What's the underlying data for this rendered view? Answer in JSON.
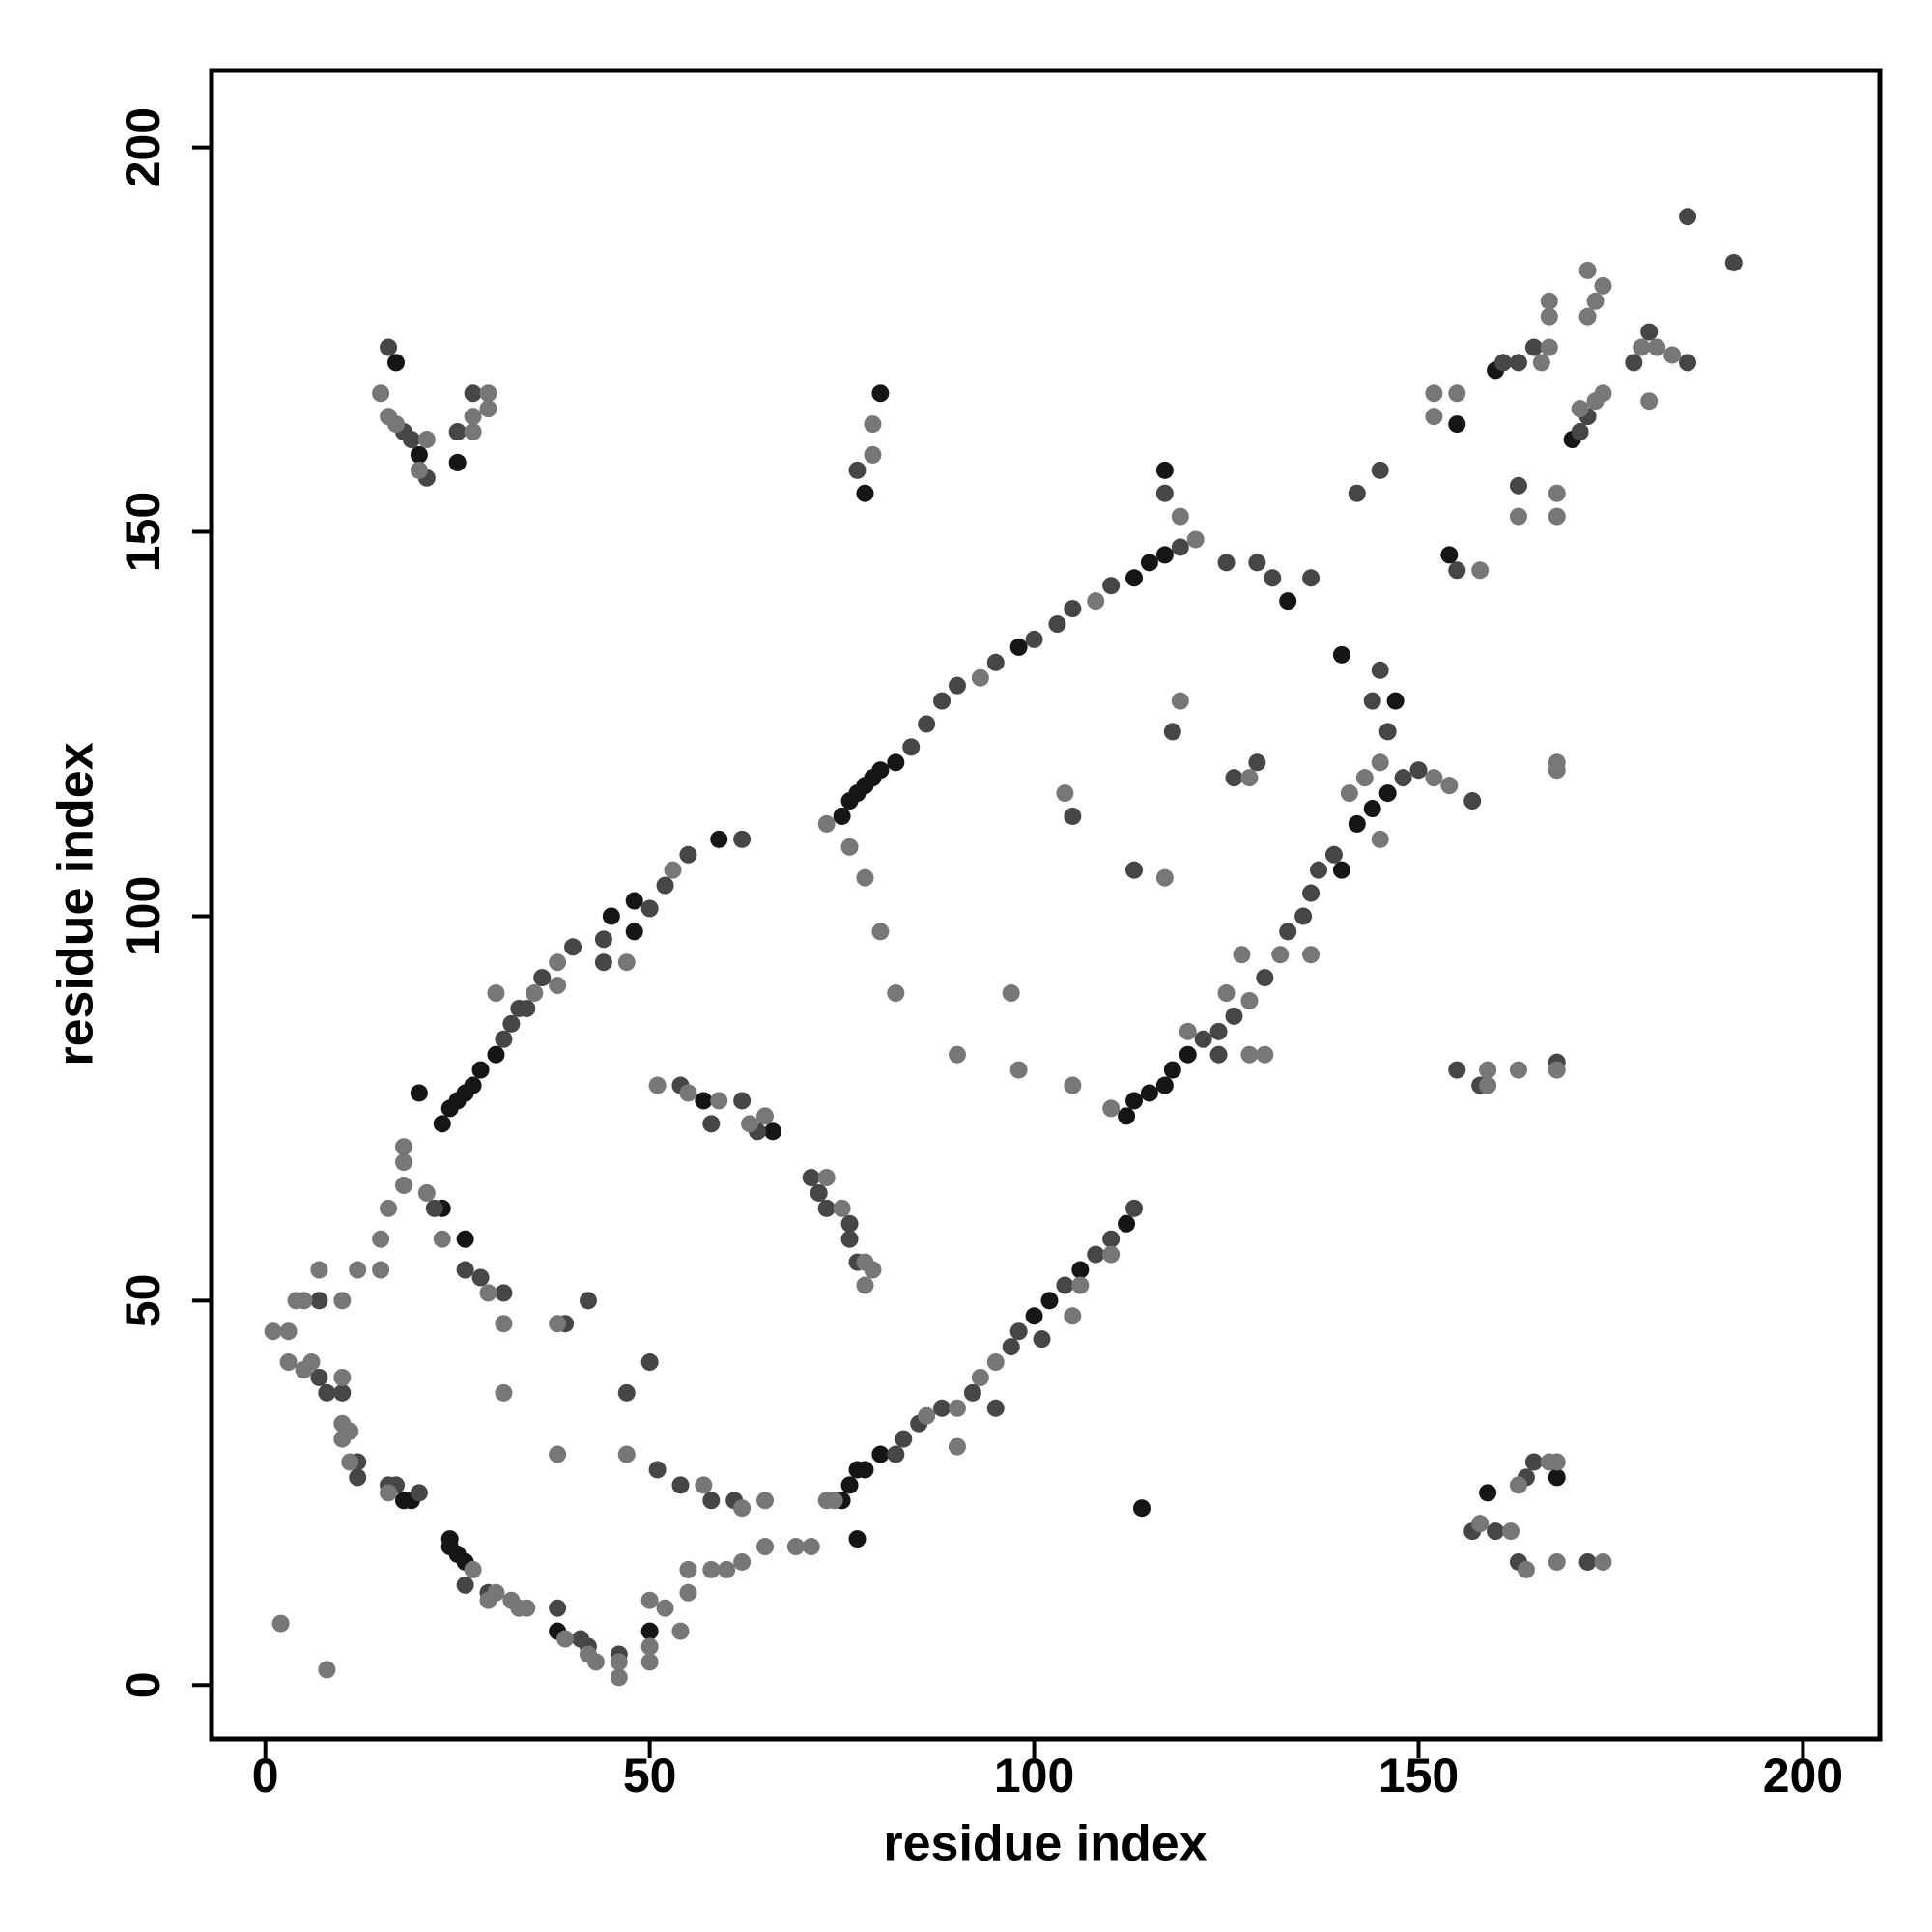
{
  "chart_data": {
    "type": "scatter",
    "x_label": "residue index",
    "y_label": "residue index",
    "xlim": [
      -7,
      210
    ],
    "ylim": [
      -7,
      210
    ],
    "xticks": [
      0,
      50,
      100,
      150,
      200
    ],
    "yticks": [
      0,
      50,
      100,
      150,
      200
    ],
    "series": [
      {
        "color": "#151515",
        "x": [
          20,
          23,
          24,
          25,
          26,
          27,
          28,
          30,
          24,
          24,
          25,
          26,
          26,
          23,
          45,
          48,
          48,
          59,
          57,
          66,
          75,
          76,
          77,
          78,
          80,
          77,
          100,
          102,
          106,
          112,
          75,
          76,
          77,
          78,
          79,
          80,
          82,
          113,
          115,
          117,
          117,
          133,
          98,
          112,
          113,
          115,
          117,
          118,
          120,
          142,
          144,
          146,
          140,
          147,
          140,
          154,
          155,
          160,
          170,
          159,
          168,
          114,
          25,
          80,
          78,
          17,
          20,
          18,
          19,
          38,
          50
        ],
        "values": [
          77,
          73,
          75,
          76,
          77,
          78,
          80,
          82,
          19,
          18,
          17,
          16,
          58,
          62,
          100,
          102,
          98,
          110,
          76,
          72,
          24,
          26,
          28,
          28,
          30,
          19,
          48,
          50,
          54,
          60,
          113,
          115,
          116,
          117,
          118,
          119,
          120,
          144,
          146,
          147,
          158,
          141,
          135,
          74,
          76,
          77,
          78,
          80,
          82,
          112,
          114,
          116,
          134,
          128,
          106,
          147,
          164,
          171,
          162,
          25,
          27,
          23,
          159,
          168,
          155,
          172,
          160,
          24,
          24,
          7,
          7
        ]
      },
      {
        "color": "#464646",
        "x": [
          7,
          7,
          8,
          10,
          12,
          12,
          16,
          17,
          20,
          26,
          29,
          38,
          41,
          42,
          46,
          22,
          26,
          28,
          31,
          32,
          34,
          36,
          40,
          44,
          50,
          52,
          55,
          62,
          54,
          58,
          62,
          64,
          71,
          72,
          73,
          76,
          76,
          77,
          58,
          61,
          47,
          50,
          51,
          82,
          83,
          85,
          88,
          92,
          95,
          97,
          98,
          101,
          104,
          108,
          110,
          84,
          86,
          88,
          90,
          95,
          100,
          103,
          105,
          110,
          119,
          117,
          125,
          129,
          131,
          136,
          77,
          105,
          113,
          118,
          126,
          129,
          122,
          124,
          126,
          130,
          133,
          135,
          136,
          137,
          139,
          144,
          145,
          145,
          146,
          148,
          150,
          155,
          157,
          163,
          161,
          163,
          165,
          171,
          172,
          178,
          180,
          185,
          185,
          191,
          155,
          158,
          168,
          157,
          160,
          163,
          164,
          165,
          172,
          21,
          18,
          19,
          27,
          25,
          42,
          39,
          31,
          16,
          44,
          33,
          54,
          142,
          124,
          113
        ],
        "values": [
          50,
          40,
          38,
          38,
          29,
          27,
          26,
          26,
          25,
          13,
          12,
          10,
          6,
          5,
          4,
          62,
          54,
          53,
          84,
          86,
          88,
          92,
          96,
          97,
          101,
          104,
          108,
          110,
          78,
          73,
          76,
          72,
          66,
          64,
          62,
          60,
          58,
          55,
          24,
          24,
          38,
          42,
          28,
          30,
          32,
          34,
          36,
          38,
          36,
          44,
          46,
          45,
          52,
          56,
          58,
          122,
          125,
          128,
          130,
          133,
          136,
          138,
          140,
          143,
          148,
          155,
          146,
          146,
          144,
          144,
          158,
          113,
          106,
          124,
          118,
          120,
          84,
          85,
          87,
          92,
          98,
          100,
          103,
          106,
          108,
          128,
          132,
          158,
          124,
          118,
          119,
          145,
          115,
          156,
          172,
          172,
          174,
          163,
          165,
          172,
          176,
          172,
          191,
          185,
          80,
          78,
          81,
          20,
          20,
          16,
          27,
          29,
          16,
          157,
          163,
          162,
          168,
          163,
          50,
          47,
          51,
          174,
          94,
          88,
          26,
          155,
          82,
          62
        ]
      },
      {
        "color": "#777777",
        "x": [
          1,
          3,
          4,
          5,
          7,
          3,
          5,
          6,
          10,
          10,
          10,
          11,
          11,
          16,
          27,
          29,
          30,
          32,
          33,
          34,
          39,
          42,
          43,
          46,
          46,
          50,
          50,
          50,
          52,
          54,
          55,
          55,
          58,
          60,
          62,
          65,
          69,
          71,
          2,
          8,
          10,
          12,
          15,
          15,
          16,
          18,
          18,
          18,
          21,
          23,
          29,
          31,
          31,
          38,
          38,
          47,
          57,
          62,
          65,
          30,
          35,
          38,
          38,
          47,
          53,
          51,
          55,
          59,
          63,
          65,
          73,
          75,
          78,
          79,
          78,
          73,
          74,
          86,
          90,
          90,
          93,
          95,
          105,
          106,
          110,
          73,
          93,
          76,
          78,
          80,
          82,
          79,
          79,
          90,
          97,
          98,
          105,
          104,
          117,
          119,
          121,
          119,
          128,
          108,
          110,
          128,
          132,
          141,
          143,
          152,
          154,
          145,
          136,
          130,
          128,
          120,
          125,
          127,
          145,
          152,
          152,
          155,
          158,
          163,
          168,
          168,
          167,
          166,
          174,
          173,
          171,
          172,
          173,
          174,
          167,
          167,
          172,
          179,
          181,
          183,
          180,
          159,
          159,
          163,
          168,
          168,
          168,
          158,
          162,
          164,
          163,
          167,
          168,
          168,
          174,
          15,
          16,
          17,
          20,
          21,
          27,
          27,
          29,
          29
        ],
        "values": [
          46,
          46,
          50,
          50,
          54,
          42,
          41,
          42,
          40,
          34,
          32,
          33,
          29,
          25,
          15,
          11,
          12,
          11,
          10,
          10,
          6,
          4,
          3,
          3,
          1,
          3,
          5,
          11,
          10,
          7,
          12,
          15,
          15,
          15,
          16,
          18,
          18,
          18,
          8,
          2,
          50,
          54,
          54,
          58,
          62,
          65,
          68,
          70,
          64,
          58,
          51,
          47,
          38,
          47,
          30,
          30,
          26,
          23,
          24,
          90,
          90,
          91,
          94,
          94,
          106,
          78,
          77,
          76,
          73,
          74,
          66,
          62,
          55,
          54,
          52,
          24,
          24,
          35,
          36,
          31,
          40,
          42,
          48,
          52,
          56,
          112,
          131,
          109,
          105,
          98,
          90,
          160,
          164,
          82,
          90,
          80,
          78,
          116,
          105,
          152,
          149,
          128,
          118,
          141,
          75,
          89,
          95,
          116,
          118,
          118,
          117,
          120,
          95,
          82,
          82,
          85,
          90,
          95,
          110,
          165,
          168,
          168,
          145,
          152,
          155,
          152,
          174,
          172,
          168,
          167,
          166,
          178,
          180,
          182,
          180,
          178,
          184,
          174,
          174,
          173,
          167,
          78,
          80,
          80,
          80,
          119,
          120,
          21,
          20,
          15,
          26,
          29,
          29,
          16,
          16,
          168,
          165,
          164,
          158,
          162,
          163,
          165,
          166,
          168
        ]
      }
    ]
  }
}
